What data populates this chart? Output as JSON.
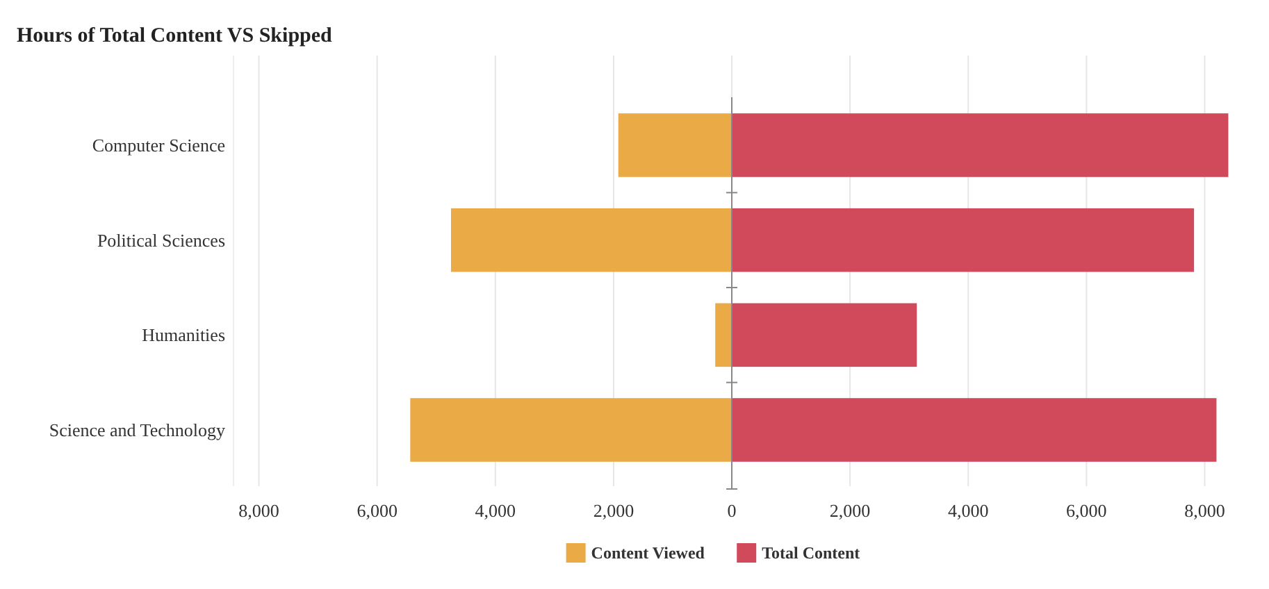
{
  "chart_data": {
    "type": "bar",
    "title": "Hours of Total Content VS Skipped",
    "orientation": "horizontal",
    "stacked": true,
    "categories": [
      "Computer Science",
      "Political Sciences",
      "Humanities",
      "Science and Technology"
    ],
    "series": [
      {
        "name": "Content Viewed",
        "color": "#eaab46",
        "values": [
          -1920,
          -4750,
          -280,
          -5440
        ]
      },
      {
        "name": "Total Content",
        "color": "#d04a5c",
        "values": [
          8400,
          7820,
          3130,
          8200
        ]
      }
    ],
    "xlim": [
      -8430,
      8430
    ],
    "xticks": [
      {
        "value": -8000,
        "label": "8,000"
      },
      {
        "value": -6000,
        "label": "6,000"
      },
      {
        "value": -4000,
        "label": "4,000"
      },
      {
        "value": -2000,
        "label": "2,000"
      },
      0,
      {
        "value": 2000,
        "label": "2,000"
      },
      {
        "value": 4000,
        "label": "4,000"
      },
      {
        "value": 6000,
        "label": "6,000"
      },
      {
        "value": 8000,
        "label": "8,000"
      }
    ],
    "grid": "x",
    "legend": "bottom"
  }
}
